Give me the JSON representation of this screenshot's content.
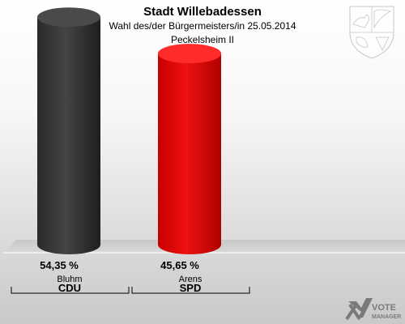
{
  "header": {
    "title": "Stadt Willebadessen",
    "subtitle": "Wahl des/der Bürgermeisters/in  25.05.2014",
    "district": "Peckelsheim II"
  },
  "logo": {
    "line1": "VOTE",
    "line2": "MANAGER"
  },
  "chart_data": {
    "type": "bar",
    "categories": [
      "CDU",
      "SPD"
    ],
    "candidates": [
      "Bluhm",
      "Arens"
    ],
    "values": [
      54.35,
      45.65
    ],
    "value_labels": [
      "54,35 %",
      "45,65 %"
    ],
    "colors": [
      "#333333",
      "#dd0000"
    ],
    "ylim": [
      0,
      60
    ],
    "grid": false,
    "legend": "none"
  }
}
